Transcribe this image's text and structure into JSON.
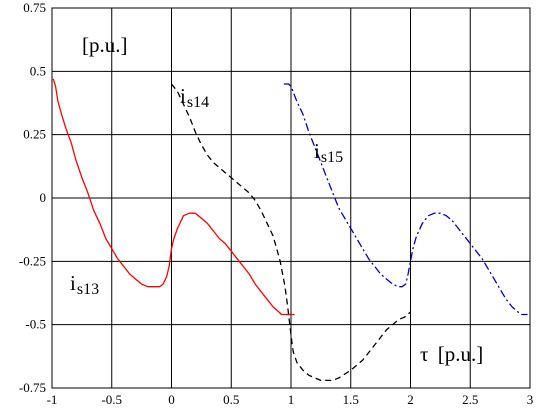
{
  "chart_data": {
    "type": "line",
    "xlim": [
      -1,
      3
    ],
    "ylim": [
      -0.75,
      0.75
    ],
    "x_ticks": [
      "-1",
      "-0.5",
      "0",
      "0.5",
      "1",
      "1.5",
      "2",
      "2.5",
      "3"
    ],
    "y_ticks": [
      "0.75",
      "0.5",
      "0.25",
      "0",
      "-0.25",
      "-0.5",
      "-0.75"
    ],
    "grid": true,
    "ylabel": "[p.u.]",
    "xlabel": {
      "symbol": "τ",
      "unit": "[p.u.]"
    },
    "series": [
      {
        "name": "is13",
        "label_main": "i",
        "label_sub": "s13",
        "color": "#ff0000",
        "style": "solid",
        "x": [
          -0.99,
          -0.97,
          -0.95,
          -0.92,
          -0.88,
          -0.84,
          -0.8,
          -0.75,
          -0.7,
          -0.65,
          -0.6,
          -0.55,
          -0.5,
          -0.45,
          -0.4,
          -0.35,
          -0.3,
          -0.25,
          -0.2,
          -0.15,
          -0.1,
          -0.07,
          -0.04,
          -0.02,
          0,
          0.02,
          0.05,
          0.1,
          0.15,
          0.2,
          0.25,
          0.3,
          0.35,
          0.4,
          0.45,
          0.5,
          0.55,
          0.6,
          0.65,
          0.7,
          0.75,
          0.8,
          0.85,
          0.9,
          0.92,
          0.94,
          0.97,
          1.0
        ],
        "y": [
          0.47,
          0.44,
          0.38,
          0.33,
          0.27,
          0.22,
          0.15,
          0.08,
          0.02,
          -0.05,
          -0.1,
          -0.16,
          -0.2,
          -0.24,
          -0.27,
          -0.3,
          -0.32,
          -0.34,
          -0.35,
          -0.35,
          -0.35,
          -0.34,
          -0.31,
          -0.27,
          -0.2,
          -0.16,
          -0.12,
          -0.07,
          -0.06,
          -0.06,
          -0.08,
          -0.1,
          -0.13,
          -0.16,
          -0.18,
          -0.21,
          -0.24,
          -0.27,
          -0.3,
          -0.34,
          -0.37,
          -0.4,
          -0.43,
          -0.45,
          -0.46,
          -0.46,
          -0.46,
          -0.46
        ]
      },
      {
        "name": "is14",
        "label_main": "i",
        "label_sub": "s14",
        "color": "#000000",
        "style": "dashed",
        "x": [
          0,
          0.05,
          0.1,
          0.15,
          0.2,
          0.25,
          0.3,
          0.35,
          0.4,
          0.45,
          0.5,
          0.55,
          0.6,
          0.65,
          0.7,
          0.75,
          0.8,
          0.85,
          0.88,
          0.91,
          0.93,
          0.95,
          0.97,
          0.98,
          0.99,
          1.0,
          1.01,
          1.02,
          1.05,
          1.1,
          1.15,
          1.2,
          1.25,
          1.3,
          1.35,
          1.4,
          1.5,
          1.6,
          1.7,
          1.8,
          1.9,
          1.95,
          2.0
        ],
        "y": [
          0.45,
          0.42,
          0.37,
          0.32,
          0.26,
          0.21,
          0.17,
          0.14,
          0.12,
          0.1,
          0.08,
          0.06,
          0.04,
          0.02,
          -0.01,
          -0.05,
          -0.1,
          -0.15,
          -0.2,
          -0.25,
          -0.3,
          -0.35,
          -0.42,
          -0.46,
          -0.5,
          -0.54,
          -0.58,
          -0.61,
          -0.65,
          -0.68,
          -0.7,
          -0.71,
          -0.72,
          -0.72,
          -0.72,
          -0.71,
          -0.68,
          -0.64,
          -0.58,
          -0.52,
          -0.48,
          -0.47,
          -0.45
        ]
      },
      {
        "name": "is15",
        "label_main": "i",
        "label_sub": "s15",
        "color": "#0000cc",
        "style": "dashdot",
        "x": [
          0.94,
          0.96,
          0.98,
          1.0,
          1.05,
          1.1,
          1.15,
          1.2,
          1.25,
          1.3,
          1.35,
          1.4,
          1.45,
          1.5,
          1.55,
          1.6,
          1.65,
          1.7,
          1.75,
          1.8,
          1.85,
          1.9,
          1.93,
          1.96,
          1.98,
          2.0,
          2.02,
          2.05,
          2.1,
          2.15,
          2.2,
          2.25,
          2.3,
          2.35,
          2.4,
          2.45,
          2.5,
          2.55,
          2.6,
          2.65,
          2.7,
          2.75,
          2.8,
          2.85,
          2.9,
          2.93,
          2.96,
          2.98
        ],
        "y": [
          0.45,
          0.45,
          0.45,
          0.44,
          0.38,
          0.33,
          0.26,
          0.2,
          0.14,
          0.08,
          0.02,
          -0.04,
          -0.08,
          -0.12,
          -0.16,
          -0.2,
          -0.24,
          -0.27,
          -0.3,
          -0.32,
          -0.34,
          -0.35,
          -0.35,
          -0.34,
          -0.3,
          -0.25,
          -0.2,
          -0.15,
          -0.1,
          -0.07,
          -0.06,
          -0.06,
          -0.07,
          -0.09,
          -0.12,
          -0.15,
          -0.18,
          -0.21,
          -0.24,
          -0.28,
          -0.32,
          -0.36,
          -0.4,
          -0.43,
          -0.45,
          -0.46,
          -0.46,
          -0.46
        ]
      }
    ]
  }
}
